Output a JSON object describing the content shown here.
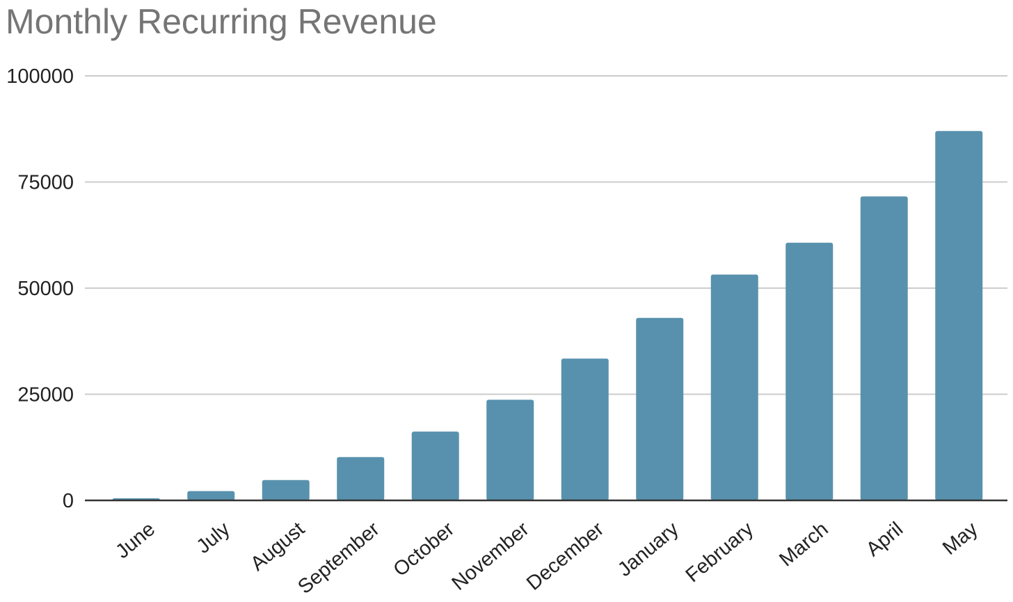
{
  "chart_data": {
    "type": "bar",
    "title": "Monthly Recurring Revenue",
    "xlabel": "",
    "ylabel": "",
    "categories": [
      "June",
      "July",
      "August",
      "September",
      "October",
      "November",
      "December",
      "January",
      "February",
      "March",
      "April",
      "May"
    ],
    "values": [
      500,
      2200,
      4800,
      10200,
      16200,
      23700,
      33400,
      43000,
      53200,
      60700,
      71600,
      87000
    ],
    "ylim": [
      0,
      100000
    ],
    "yticks": [
      "0",
      "25000",
      "50000",
      "75000",
      "100000"
    ],
    "grid": true,
    "legend": "none",
    "bar_color": "#5891ad"
  }
}
